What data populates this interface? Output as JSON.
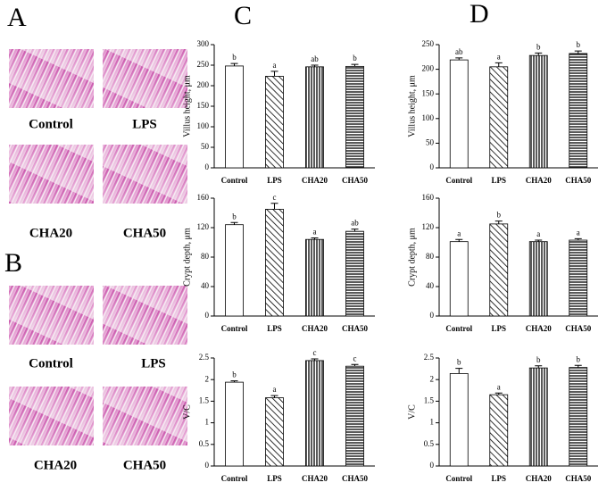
{
  "panel_labels": [
    "A",
    "B",
    "C",
    "D"
  ],
  "image_captions": {
    "A": [
      "Control",
      "LPS",
      "CHA20",
      "CHA50"
    ],
    "B": [
      "Control",
      "LPS",
      "CHA20",
      "CHA50"
    ]
  },
  "chart_data": [
    {
      "type": "bar",
      "ylabel": "Villus height, μm",
      "categories": [
        "Control",
        "LPS",
        "CHA20",
        "CHA50"
      ],
      "values": [
        248,
        223,
        246,
        247
      ],
      "errors": [
        6,
        12,
        4,
        5
      ],
      "annotations": [
        "b",
        "a",
        "ab",
        "b"
      ],
      "patterns": [
        "none",
        "diagonal",
        "vertical",
        "horizontal"
      ],
      "ylim": [
        0,
        300
      ],
      "yticks": [
        0,
        50,
        100,
        150,
        200,
        250,
        300
      ]
    },
    {
      "type": "bar",
      "ylabel": "Crypt depth, μm",
      "categories": [
        "Control",
        "LPS",
        "CHA20",
        "CHA50"
      ],
      "values": [
        124,
        145,
        104,
        115
      ],
      "errors": [
        3,
        8,
        2,
        3
      ],
      "annotations": [
        "b",
        "c",
        "a",
        "ab"
      ],
      "patterns": [
        "none",
        "diagonal",
        "vertical",
        "horizontal"
      ],
      "ylim": [
        0,
        160
      ],
      "yticks": [
        0,
        40,
        80,
        120,
        160
      ]
    },
    {
      "type": "bar",
      "ylabel": "V/C",
      "categories": [
        "Control",
        "LPS",
        "CHA20",
        "CHA50"
      ],
      "values": [
        1.94,
        1.58,
        2.44,
        2.31
      ],
      "errors": [
        0.03,
        0.05,
        0.04,
        0.04
      ],
      "annotations": [
        "b",
        "a",
        "c",
        "c"
      ],
      "patterns": [
        "none",
        "diagonal",
        "vertical",
        "horizontal"
      ],
      "ylim": [
        0,
        2.5
      ],
      "yticks": [
        0,
        0.5,
        1,
        1.5,
        2,
        2.5
      ]
    },
    {
      "type": "bar",
      "ylabel": "Villus height, μm",
      "categories": [
        "Control",
        "LPS",
        "CHA20",
        "CHA50"
      ],
      "values": [
        219,
        205,
        228,
        232
      ],
      "errors": [
        4,
        8,
        5,
        5
      ],
      "annotations": [
        "ab",
        "a",
        "b",
        "b"
      ],
      "patterns": [
        "none",
        "diagonal",
        "vertical",
        "horizontal"
      ],
      "ylim": [
        0,
        250
      ],
      "yticks": [
        0,
        50,
        100,
        150,
        200,
        250
      ]
    },
    {
      "type": "bar",
      "ylabel": "Crypt depth, μm",
      "categories": [
        "Control",
        "LPS",
        "CHA20",
        "CHA50"
      ],
      "values": [
        101,
        125,
        101,
        103
      ],
      "errors": [
        3,
        4,
        2,
        2
      ],
      "annotations": [
        "a",
        "b",
        "a",
        "a"
      ],
      "patterns": [
        "none",
        "diagonal",
        "vertical",
        "horizontal"
      ],
      "ylim": [
        0,
        160
      ],
      "yticks": [
        0,
        40,
        80,
        120,
        160
      ]
    },
    {
      "type": "bar",
      "ylabel": "V/C",
      "categories": [
        "Control",
        "LPS",
        "CHA20",
        "CHA50"
      ],
      "values": [
        2.14,
        1.65,
        2.27,
        2.28
      ],
      "errors": [
        0.12,
        0.04,
        0.05,
        0.05
      ],
      "annotations": [
        "b",
        "a",
        "b",
        "b"
      ],
      "patterns": [
        "none",
        "diagonal",
        "vertical",
        "horizontal"
      ],
      "ylim": [
        0,
        2.5
      ],
      "yticks": [
        0,
        0.5,
        1,
        1.5,
        2,
        2.5
      ]
    }
  ]
}
